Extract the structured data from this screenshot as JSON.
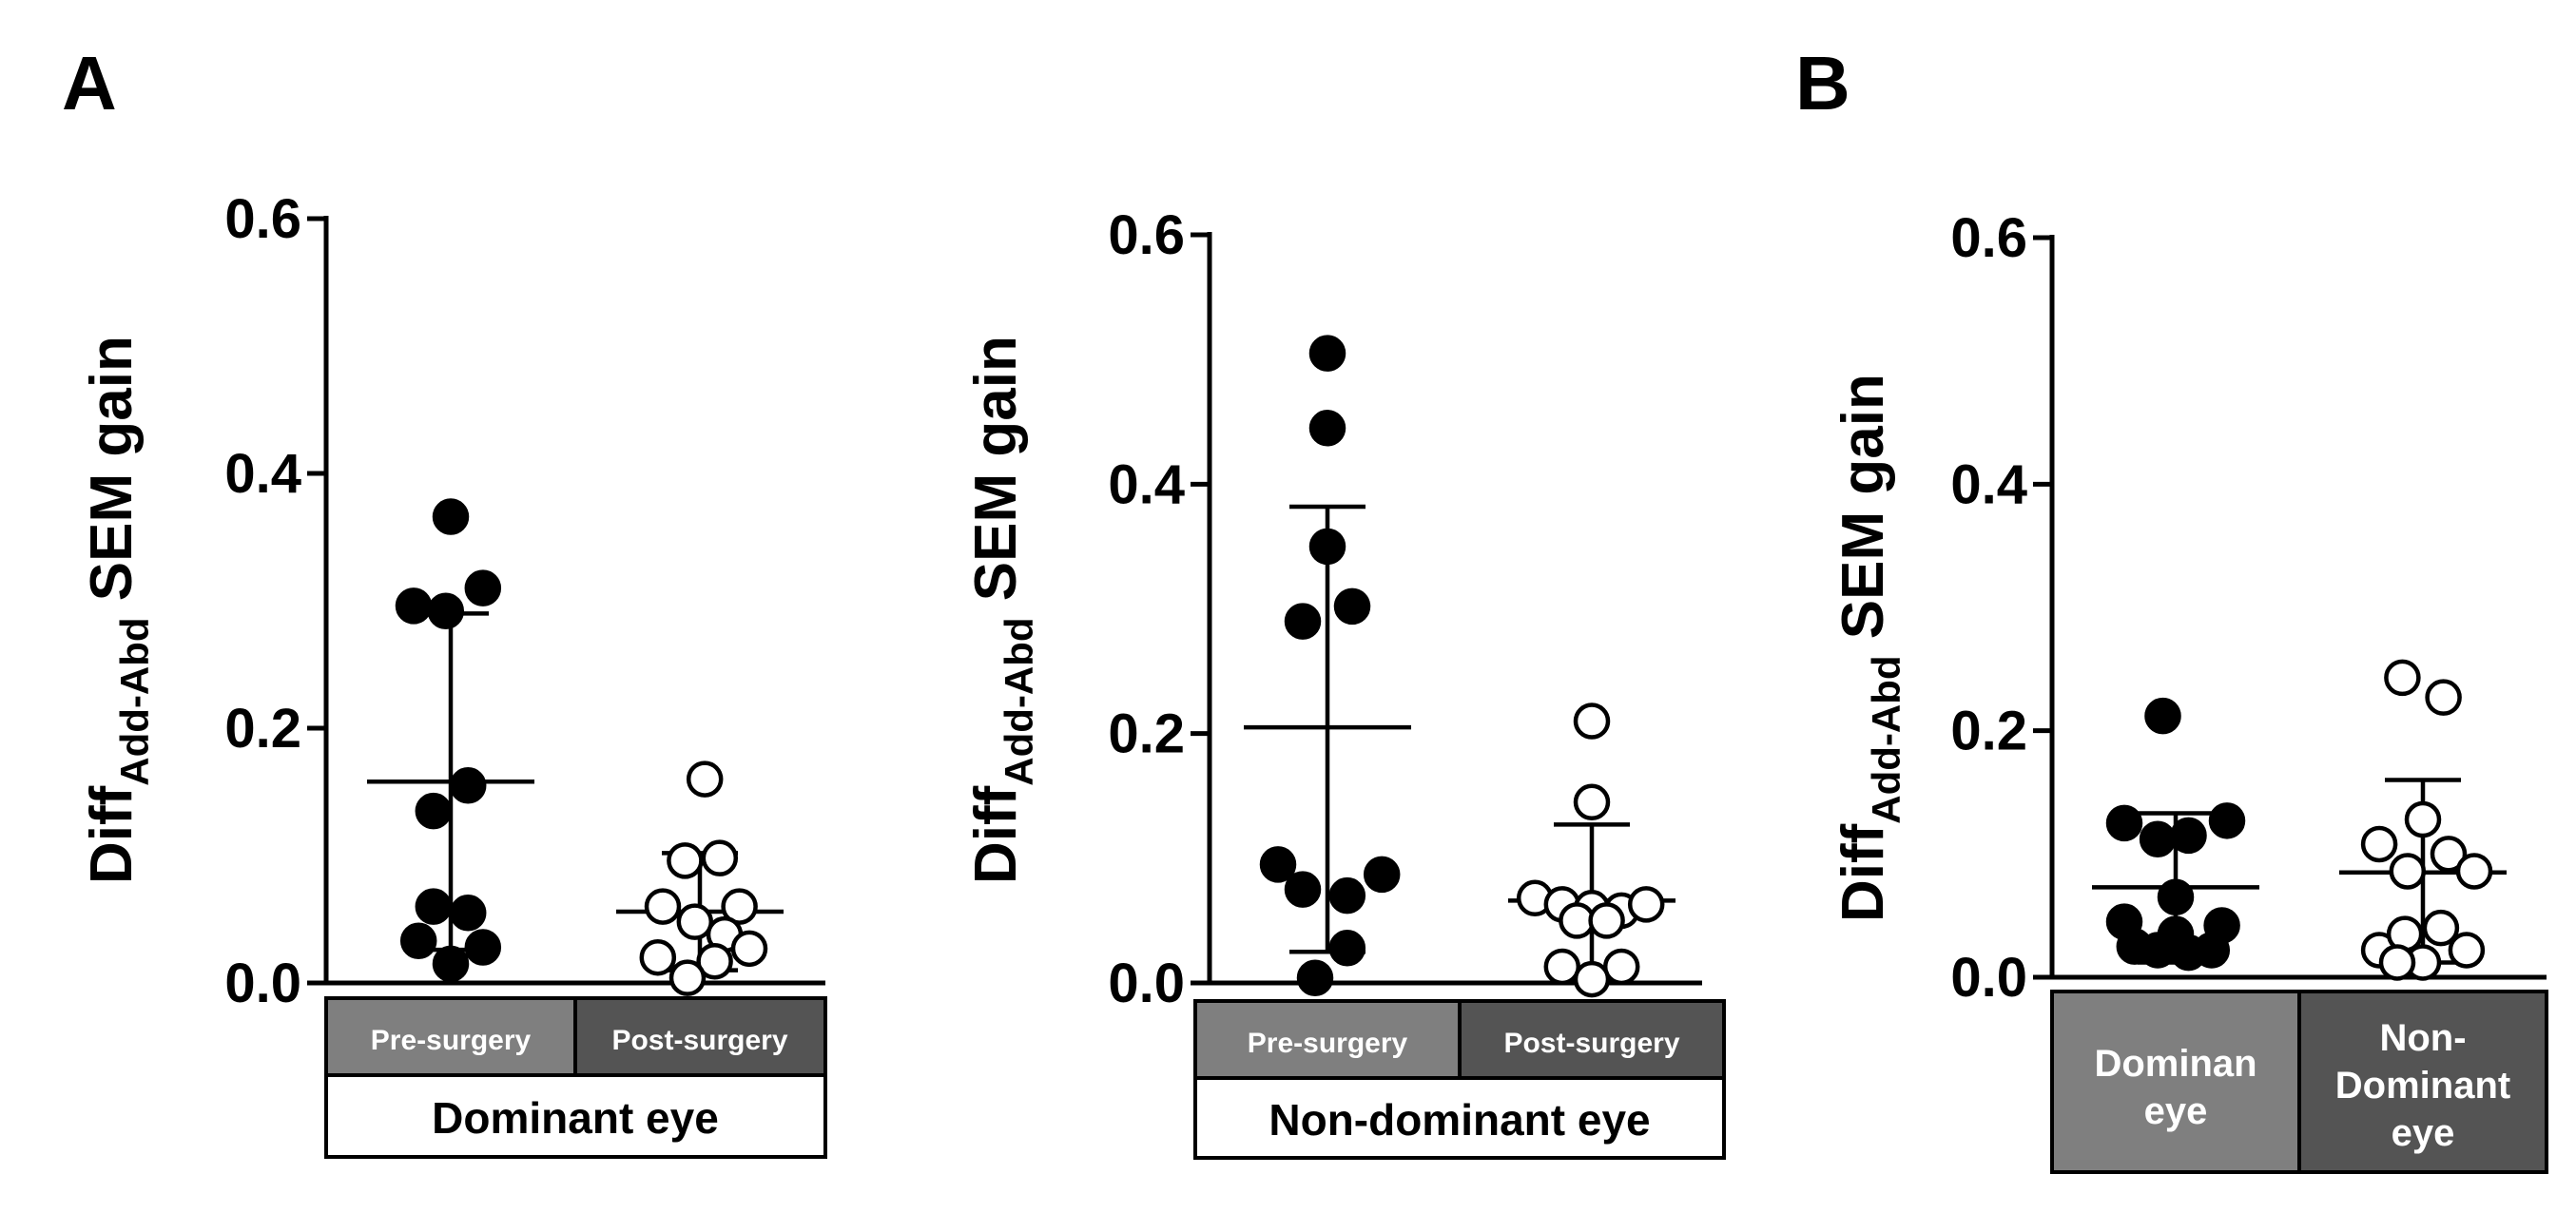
{
  "panel_labels": [
    "A",
    "B"
  ],
  "colors": {
    "axis": "#000000",
    "pre_box": "#7f7f7f",
    "post_box": "#545454",
    "box_text": "#ffffff",
    "cond_box": "#ffffff"
  },
  "chart_data": [
    {
      "type": "scatter",
      "panel": "A",
      "ylabel": {
        "main": "Diff",
        "sub": "Add-Abd",
        "rest": " SEM gain"
      },
      "ylim": [
        0,
        0.6
      ],
      "yticks": [
        "0.0",
        "0.2",
        "0.4",
        "0.6"
      ],
      "categories": [
        "Pre-surgery",
        "Post-surgery"
      ],
      "condition": "Dominant eye",
      "series": [
        {
          "filled": true,
          "mean": 0.158,
          "sd_low": 0.026,
          "sd_high": 0.29,
          "points": [
            [
              -0.15,
              0.296
            ],
            [
              -0.02,
              0.292
            ],
            [
              0.13,
              0.31
            ],
            [
              0.0,
              0.366
            ],
            [
              -0.07,
              0.135
            ],
            [
              0.07,
              0.155
            ],
            [
              -0.07,
              0.06
            ],
            [
              0.07,
              0.055
            ],
            [
              -0.13,
              0.033
            ],
            [
              0.13,
              0.028
            ],
            [
              0.0,
              0.015
            ]
          ]
        },
        {
          "filled": false,
          "mean": 0.056,
          "sd_low": 0.01,
          "sd_high": 0.102,
          "points": [
            [
              0.02,
              0.16
            ],
            [
              -0.06,
              0.096
            ],
            [
              0.08,
              0.098
            ],
            [
              -0.15,
              0.06
            ],
            [
              0.16,
              0.06
            ],
            [
              -0.02,
              0.048
            ],
            [
              0.1,
              0.038
            ],
            [
              0.2,
              0.027
            ],
            [
              -0.17,
              0.02
            ],
            [
              0.06,
              0.017
            ],
            [
              -0.05,
              0.004
            ]
          ]
        }
      ]
    },
    {
      "type": "scatter",
      "panel": "A",
      "ylabel": {
        "main": "Diff",
        "sub": "Add-Abd",
        "rest": " SEM gain"
      },
      "ylim": [
        0,
        0.6
      ],
      "yticks": [
        "0.0",
        "0.2",
        "0.4",
        "0.6"
      ],
      "categories": [
        "Pre-surgery",
        "Post-surgery"
      ],
      "condition": "Non-dominant eye",
      "series": [
        {
          "filled": true,
          "mean": 0.205,
          "sd_low": 0.025,
          "sd_high": 0.382,
          "points": [
            [
              0.0,
              0.505
            ],
            [
              0.0,
              0.445
            ],
            [
              0.0,
              0.35
            ],
            [
              -0.1,
              0.29
            ],
            [
              0.1,
              0.302
            ],
            [
              -0.2,
              0.095
            ],
            [
              0.22,
              0.087
            ],
            [
              -0.1,
              0.075
            ],
            [
              0.08,
              0.07
            ],
            [
              0.08,
              0.028
            ],
            [
              -0.05,
              0.004
            ]
          ]
        },
        {
          "filled": false,
          "mean": 0.066,
          "sd_low": 0.004,
          "sd_high": 0.127,
          "points": [
            [
              0.0,
              0.21
            ],
            [
              0.0,
              0.145
            ],
            [
              -0.23,
              0.068
            ],
            [
              -0.12,
              0.063
            ],
            [
              0.0,
              0.06
            ],
            [
              0.12,
              0.058
            ],
            [
              0.22,
              0.063
            ],
            [
              -0.06,
              0.05
            ],
            [
              0.06,
              0.05
            ],
            [
              -0.12,
              0.013
            ],
            [
              0.12,
              0.013
            ],
            [
              0.0,
              0.003
            ]
          ]
        }
      ]
    },
    {
      "type": "scatter",
      "panel": "B",
      "ylabel": {
        "main": "Diff",
        "sub": "Add-Abd",
        "rest": " SEM gain"
      },
      "ylim": [
        0,
        0.6
      ],
      "yticks": [
        "0.0",
        "0.2",
        "0.4",
        "0.6"
      ],
      "categories": [
        "Dominan eye",
        "Non-Dominant eye"
      ],
      "series": [
        {
          "filled": true,
          "mean": 0.073,
          "sd_low": 0.012,
          "sd_high": 0.133,
          "points": [
            [
              -0.05,
              0.212
            ],
            [
              -0.2,
              0.125
            ],
            [
              0.2,
              0.127
            ],
            [
              -0.07,
              0.112
            ],
            [
              0.05,
              0.115
            ],
            [
              0.0,
              0.065
            ],
            [
              -0.2,
              0.045
            ],
            [
              0.18,
              0.042
            ],
            [
              -0.16,
              0.025
            ],
            [
              -0.07,
              0.022
            ],
            [
              0.05,
              0.02
            ],
            [
              0.14,
              0.022
            ],
            [
              0.0,
              0.035
            ]
          ]
        },
        {
          "filled": false,
          "mean": 0.085,
          "sd_low": 0.012,
          "sd_high": 0.16,
          "points": [
            [
              -0.08,
              0.243
            ],
            [
              0.08,
              0.227
            ],
            [
              0.0,
              0.128
            ],
            [
              -0.17,
              0.108
            ],
            [
              0.1,
              0.1
            ],
            [
              -0.06,
              0.086
            ],
            [
              0.2,
              0.086
            ],
            [
              -0.17,
              0.022
            ],
            [
              0.17,
              0.022
            ],
            [
              -0.07,
              0.035
            ],
            [
              0.07,
              0.04
            ],
            [
              0.0,
              0.012
            ],
            [
              -0.1,
              0.012
            ]
          ]
        }
      ]
    }
  ],
  "group_labels_b": [
    [
      "Dominan",
      "eye"
    ],
    [
      "Non-",
      "Dominant",
      "eye"
    ]
  ]
}
